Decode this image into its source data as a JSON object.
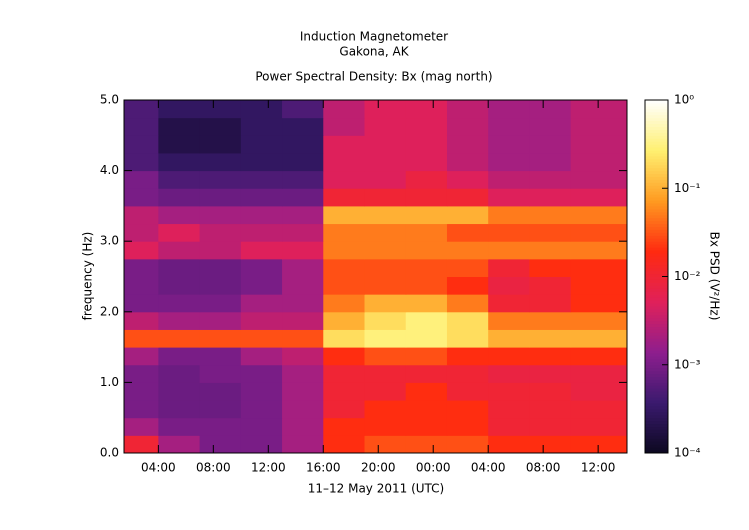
{
  "chart_data": {
    "type": "heatmap",
    "title": "Induction Magnetometer",
    "subtitle": "Gakona, AK",
    "plot_title": "Power Spectral Density: Bx (mag north)",
    "x_label": "11–12 May 2011 (UTC)",
    "y_label": "frequency (Hz)",
    "colorbar_label": "Bx PSD (V²/Hz)",
    "xlim": [
      1.5,
      38.1
    ],
    "xticks": [
      {
        "value": 4,
        "label": "04:00"
      },
      {
        "value": 8,
        "label": "08:00"
      },
      {
        "value": 12,
        "label": "12:00"
      },
      {
        "value": 16,
        "label": "16:00"
      },
      {
        "value": 20,
        "label": "20:00"
      },
      {
        "value": 24,
        "label": "00:00"
      },
      {
        "value": 28,
        "label": "04:00"
      },
      {
        "value": 32,
        "label": "08:00"
      },
      {
        "value": 36,
        "label": "12:00"
      }
    ],
    "ylim": [
      0,
      5
    ],
    "yticks": [
      {
        "value": 0,
        "label": "0.0"
      },
      {
        "value": 1,
        "label": "1.0"
      },
      {
        "value": 2,
        "label": "2.0"
      },
      {
        "value": 3,
        "label": "3.0"
      },
      {
        "value": 4,
        "label": "4.0"
      },
      {
        "value": 5,
        "label": "5.0"
      }
    ],
    "zlim": [
      0.0001,
      1
    ],
    "zscale": "log",
    "zticks": [
      {
        "value": 0.0001,
        "label": "10⁻⁴"
      },
      {
        "value": 0.001,
        "label": "10⁻³"
      },
      {
        "value": 0.01,
        "label": "10⁻²"
      },
      {
        "value": 0.1,
        "label": "10⁻¹"
      },
      {
        "value": 1,
        "label": "10⁰"
      }
    ],
    "colormap": [
      "#0c0820",
      "#3a1a6e",
      "#8e1e8e",
      "#e0205a",
      "#ff2a10",
      "#ff9a20",
      "#fff070",
      "#ffffff"
    ],
    "x_edges": [
      1.5,
      4,
      7,
      10,
      13,
      16,
      19,
      22,
      25,
      28,
      31,
      34,
      38.1
    ],
    "y_edges": [
      0,
      0.25,
      0.5,
      0.75,
      1,
      1.25,
      1.5,
      1.75,
      2,
      2.25,
      2.5,
      2.75,
      3,
      3.25,
      3.5,
      3.75,
      4,
      4.25,
      4.5,
      4.75,
      5
    ],
    "values": [
      [
        0.01,
        0.002,
        0.001,
        0.001,
        0.002,
        0.02,
        0.03,
        0.03,
        0.03,
        0.02,
        0.02,
        0.02
      ],
      [
        0.002,
        0.001,
        0.001,
        0.001,
        0.002,
        0.02,
        0.02,
        0.02,
        0.02,
        0.01,
        0.01,
        0.01
      ],
      [
        0.001,
        0.0008,
        0.0008,
        0.001,
        0.002,
        0.01,
        0.02,
        0.02,
        0.02,
        0.01,
        0.01,
        0.01
      ],
      [
        0.001,
        0.0008,
        0.0008,
        0.001,
        0.002,
        0.01,
        0.01,
        0.02,
        0.01,
        0.01,
        0.01,
        0.008
      ],
      [
        0.001,
        0.0008,
        0.001,
        0.001,
        0.002,
        0.01,
        0.01,
        0.01,
        0.01,
        0.008,
        0.008,
        0.008
      ],
      [
        0.002,
        0.001,
        0.001,
        0.002,
        0.003,
        0.02,
        0.03,
        0.03,
        0.02,
        0.02,
        0.02,
        0.02
      ],
      [
        0.03,
        0.03,
        0.03,
        0.03,
        0.03,
        0.2,
        0.3,
        0.3,
        0.2,
        0.1,
        0.1,
        0.1
      ],
      [
        0.003,
        0.002,
        0.002,
        0.003,
        0.003,
        0.1,
        0.2,
        0.3,
        0.2,
        0.05,
        0.05,
        0.05
      ],
      [
        0.001,
        0.001,
        0.001,
        0.002,
        0.002,
        0.05,
        0.1,
        0.1,
        0.05,
        0.01,
        0.01,
        0.02
      ],
      [
        0.001,
        0.0008,
        0.0008,
        0.001,
        0.002,
        0.03,
        0.03,
        0.03,
        0.02,
        0.008,
        0.01,
        0.02
      ],
      [
        0.001,
        0.0008,
        0.0008,
        0.001,
        0.002,
        0.03,
        0.03,
        0.03,
        0.03,
        0.01,
        0.02,
        0.02
      ],
      [
        0.005,
        0.003,
        0.003,
        0.005,
        0.005,
        0.05,
        0.05,
        0.05,
        0.05,
        0.05,
        0.05,
        0.05
      ],
      [
        0.003,
        0.005,
        0.003,
        0.003,
        0.003,
        0.05,
        0.05,
        0.05,
        0.03,
        0.03,
        0.03,
        0.03
      ],
      [
        0.003,
        0.002,
        0.002,
        0.002,
        0.002,
        0.1,
        0.1,
        0.1,
        0.1,
        0.05,
        0.05,
        0.05
      ],
      [
        0.001,
        0.0008,
        0.0008,
        0.0008,
        0.0008,
        0.01,
        0.01,
        0.01,
        0.01,
        0.005,
        0.005,
        0.005
      ],
      [
        0.001,
        0.0005,
        0.0005,
        0.0005,
        0.0005,
        0.005,
        0.005,
        0.008,
        0.005,
        0.003,
        0.003,
        0.003
      ],
      [
        0.0005,
        0.0003,
        0.0003,
        0.0003,
        0.0003,
        0.005,
        0.005,
        0.005,
        0.003,
        0.002,
        0.002,
        0.003
      ],
      [
        0.0005,
        0.0002,
        0.0002,
        0.0003,
        0.0003,
        0.005,
        0.005,
        0.005,
        0.003,
        0.002,
        0.002,
        0.003
      ],
      [
        0.0005,
        0.0002,
        0.0002,
        0.0003,
        0.0003,
        0.003,
        0.005,
        0.005,
        0.003,
        0.002,
        0.002,
        0.003
      ],
      [
        0.0005,
        0.0003,
        0.0003,
        0.0003,
        0.0005,
        0.003,
        0.005,
        0.005,
        0.003,
        0.002,
        0.002,
        0.003
      ]
    ]
  }
}
